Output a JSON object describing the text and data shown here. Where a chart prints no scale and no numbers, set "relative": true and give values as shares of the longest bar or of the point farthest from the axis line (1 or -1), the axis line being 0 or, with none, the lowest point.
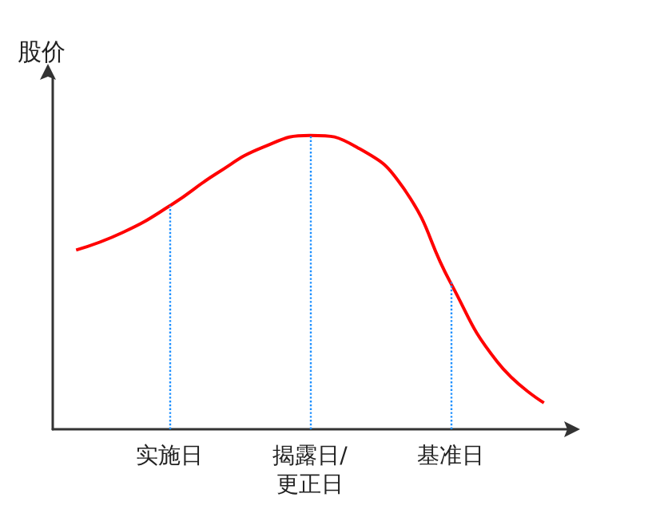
{
  "chart_data": {
    "type": "line",
    "ylabel": "股价",
    "relative": true,
    "categories": [
      null,
      null,
      "实施日",
      null,
      null,
      "揭露日/\n更正日",
      null,
      null,
      "基准日",
      null,
      null
    ],
    "series": [
      {
        "color": "#ff0000",
        "values": [
          0.61,
          0.67,
          0.76,
          0.87,
          0.96,
          1,
          0.96,
          0.82,
          0.5,
          0.23,
          0.09
        ]
      }
    ],
    "ref_lines": [
      {
        "axis": "x",
        "value": "实施日",
        "color": "#1e90ff",
        "line_style": "dotted"
      },
      {
        "axis": "x",
        "value": "揭露日/\n更正日",
        "color": "#1e90ff",
        "line_style": "dotted"
      },
      {
        "axis": "x",
        "value": "基准日",
        "color": "#1e90ff",
        "line_style": "dotted"
      }
    ],
    "grid": false,
    "marker": "none",
    "line_style": "solid",
    "tick_labels": "x"
  }
}
